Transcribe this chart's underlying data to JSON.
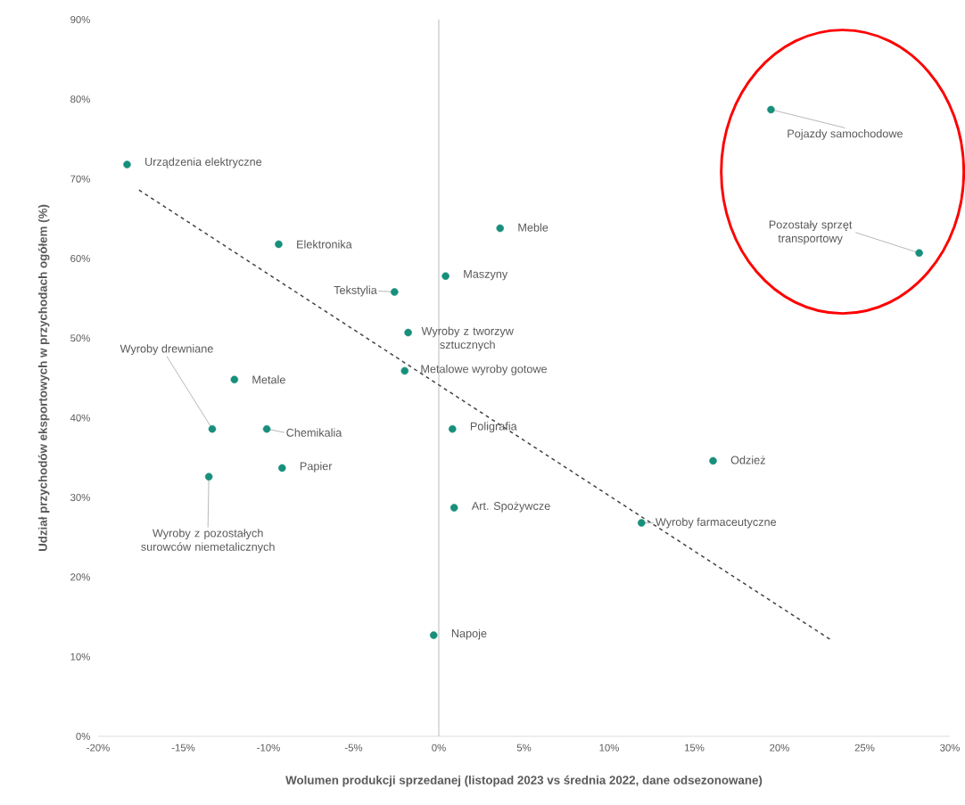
{
  "chart_data": {
    "type": "scatter",
    "xlabel": "Wolumen produkcji sprzedanej (listopad 2023 vs średnia 2022, dane odsezonowane)",
    "ylabel": "Udział przychodów eksportowych w przychodach ogółem (%)",
    "xlim": [
      -20,
      30
    ],
    "ylim": [
      0,
      90
    ],
    "xticks": [
      {
        "value": -20,
        "label": "-20%"
      },
      {
        "value": -15,
        "label": "-15%"
      },
      {
        "value": -10,
        "label": "-10%"
      },
      {
        "value": -5,
        "label": "-5%"
      },
      {
        "value": 0,
        "label": "0%"
      },
      {
        "value": 5,
        "label": "5%"
      },
      {
        "value": 10,
        "label": "10%"
      },
      {
        "value": 15,
        "label": "15%"
      },
      {
        "value": 20,
        "label": "20%"
      },
      {
        "value": 25,
        "label": "25%"
      },
      {
        "value": 30,
        "label": "30%"
      }
    ],
    "yticks": [
      {
        "value": 0,
        "label": "0%"
      },
      {
        "value": 10,
        "label": "10%"
      },
      {
        "value": 20,
        "label": "20%"
      },
      {
        "value": 30,
        "label": "30%"
      },
      {
        "value": 40,
        "label": "40%"
      },
      {
        "value": 50,
        "label": "50%"
      },
      {
        "value": 60,
        "label": "60%"
      },
      {
        "value": 70,
        "label": "70%"
      },
      {
        "value": 80,
        "label": "80%"
      },
      {
        "value": 90,
        "label": "90%"
      }
    ],
    "ref_lines": [
      {
        "axis": "x",
        "value": 0,
        "color": "#bfbfbf"
      }
    ],
    "series": [
      {
        "type": "scatter",
        "color": "#178f7b",
        "marker": "circle",
        "x": [
          -18.3,
          -9.4,
          3.6,
          0.4,
          -2.6,
          -1.8,
          -2.0,
          -12.0,
          -13.3,
          -10.1,
          0.8,
          -9.2,
          -13.5,
          0.9,
          16.1,
          11.9,
          -0.3,
          19.5,
          28.2
        ],
        "values": [
          71.8,
          61.8,
          63.8,
          57.8,
          55.8,
          50.7,
          45.9,
          44.8,
          38.6,
          38.6,
          38.6,
          33.7,
          32.6,
          28.7,
          34.6,
          26.8,
          12.7,
          78.7,
          60.7
        ]
      },
      {
        "type": "line",
        "color": "#404040",
        "marker": "none",
        "line_style": "dashed",
        "x": [
          -17.6,
          23.1
        ],
        "values": [
          68.6,
          12.0
        ]
      }
    ],
    "annotations": [
      {
        "text": "Urządzenia elektryczne",
        "x": -18.3,
        "y": 71.8
      },
      {
        "text": "Elektronika",
        "x": -9.4,
        "y": 61.8
      },
      {
        "text": "Meble",
        "x": 3.6,
        "y": 63.8
      },
      {
        "text": "Maszyny",
        "x": 0.4,
        "y": 57.8
      },
      {
        "text": "Tekstylia",
        "x": -2.6,
        "y": 55.8
      },
      {
        "text": "Wyroby z tworzyw sztucznych",
        "x": -1.8,
        "y": 50.7
      },
      {
        "text": "Metalowe wyroby gotowe",
        "x": -2.0,
        "y": 45.9
      },
      {
        "text": "Metale",
        "x": -12.0,
        "y": 44.8
      },
      {
        "text": "Wyroby drewniane",
        "x": -13.3,
        "y": 38.6
      },
      {
        "text": "Chemikalia",
        "x": -10.1,
        "y": 38.6
      },
      {
        "text": "Poligrafia",
        "x": 0.8,
        "y": 38.6
      },
      {
        "text": "Papier",
        "x": -9.2,
        "y": 33.7
      },
      {
        "text": "Wyroby z pozostałych surowców niemetalicznych",
        "x": -13.5,
        "y": 32.6
      },
      {
        "text": "Art. Spożywcze",
        "x": 0.9,
        "y": 28.7
      },
      {
        "text": "Odzież",
        "x": 16.1,
        "y": 34.6
      },
      {
        "text": "Wyroby farmaceutyczne",
        "x": 11.9,
        "y": 26.8
      },
      {
        "text": "Napoje",
        "x": -0.3,
        "y": 12.7
      },
      {
        "text": "Pojazdy samochodowe",
        "x": 19.5,
        "y": 78.7
      },
      {
        "text": "Pozostały sprzęt transportowy",
        "x": 28.2,
        "y": 60.7
      }
    ]
  }
}
